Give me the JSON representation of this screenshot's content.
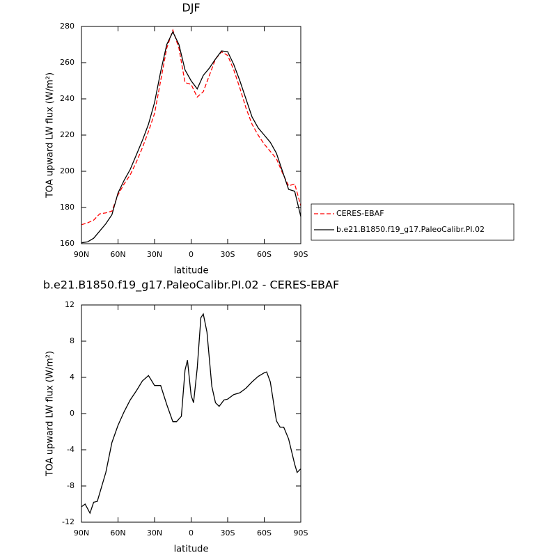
{
  "chart_data": [
    {
      "type": "line",
      "title": "DJF",
      "xlabel": "latitude",
      "ylabel": "TOA upward LW flux (W/m²)",
      "x": [
        90,
        85,
        80,
        75,
        70,
        65,
        60,
        55,
        50,
        45,
        40,
        35,
        30,
        25,
        20,
        15,
        10,
        5,
        0,
        -5,
        -10,
        -15,
        -20,
        -25,
        -30,
        -35,
        -40,
        -45,
        -50,
        -55,
        -60,
        -65,
        -70,
        -75,
        -80,
        -85,
        -90
      ],
      "series": [
        {
          "name": "CERES-EBAF",
          "color": "#ff0000",
          "dashed": true,
          "values": [
            170.5,
            171.5,
            173,
            176.5,
            177,
            178,
            187,
            193,
            198,
            205,
            213,
            222,
            232,
            250,
            268,
            278,
            268,
            249,
            248,
            241,
            244,
            253,
            262,
            266,
            264,
            256,
            246,
            235,
            226,
            220,
            215,
            211,
            207,
            199,
            192,
            193,
            181
          ]
        },
        {
          "name": "b.e21.B1850.f19_g17.PaleoCalibr.PI.02",
          "color": "#000000",
          "dashed": false,
          "values": [
            160.5,
            161,
            163,
            167,
            171,
            176,
            188,
            195,
            201,
            209,
            217,
            226,
            238,
            255,
            270,
            277,
            270,
            256,
            250,
            245.5,
            253,
            257,
            262,
            266.5,
            266,
            259,
            250,
            240,
            230,
            224,
            220,
            216,
            210,
            200,
            190,
            189,
            175
          ]
        }
      ],
      "xlim": [
        90,
        -90
      ],
      "xticks": [
        {
          "value": 90,
          "label": "90N"
        },
        {
          "value": 60,
          "label": "60N"
        },
        {
          "value": 30,
          "label": "30N"
        },
        0,
        {
          "value": -30,
          "label": "30S"
        },
        {
          "value": -60,
          "label": "60S"
        },
        {
          "value": -90,
          "label": "90S"
        }
      ],
      "ylim": [
        160,
        280
      ],
      "yticks": [
        160,
        180,
        200,
        220,
        240,
        260,
        280
      ],
      "legend": "right"
    },
    {
      "type": "line",
      "title": "b.e21.B1850.f19_g17.PaleoCalibr.PI.02 - CERES-EBAF",
      "xlabel": "latitude",
      "ylabel": "TOA upward LW flux (W/m²)",
      "x": [
        90,
        87,
        83,
        80,
        77,
        70,
        65,
        60,
        55,
        50,
        45,
        40,
        35,
        30,
        25,
        20,
        15,
        12,
        8,
        5,
        3,
        0,
        -2,
        -5,
        -8,
        -10,
        -13,
        -17,
        -20,
        -23,
        -27,
        -30,
        -35,
        -40,
        -45,
        -50,
        -55,
        -60,
        -62,
        -65,
        -70,
        -73,
        -76,
        -80,
        -85,
        -87,
        -90
      ],
      "series": [
        {
          "color": "#000000",
          "dashed": false,
          "values": [
            -10.3,
            -10,
            -11,
            -9.8,
            -9.7,
            -6.5,
            -3.2,
            -1.3,
            0.2,
            1.5,
            2.5,
            3.6,
            4.2,
            3.1,
            3.1,
            1,
            -0.9,
            -0.9,
            -0.3,
            4.8,
            5.9,
            2,
            1.2,
            5,
            10.6,
            11,
            9,
            3,
            1.2,
            0.8,
            1.5,
            1.6,
            2.1,
            2.3,
            2.8,
            3.5,
            4.1,
            4.5,
            4.6,
            3.5,
            -0.8,
            -1.5,
            -1.5,
            -2.8,
            -5.6,
            -6.5,
            -6.1
          ]
        }
      ],
      "xlim": [
        90,
        -90
      ],
      "xticks": [
        {
          "value": 90,
          "label": "90N"
        },
        {
          "value": 60,
          "label": "60N"
        },
        {
          "value": 30,
          "label": "30N"
        },
        0,
        {
          "value": -30,
          "label": "30S"
        },
        {
          "value": -60,
          "label": "60S"
        },
        {
          "value": -90,
          "label": "90S"
        }
      ],
      "ylim": [
        -12,
        12
      ],
      "yticks": [
        -12,
        -8,
        -4,
        0,
        4,
        8,
        12
      ]
    }
  ]
}
